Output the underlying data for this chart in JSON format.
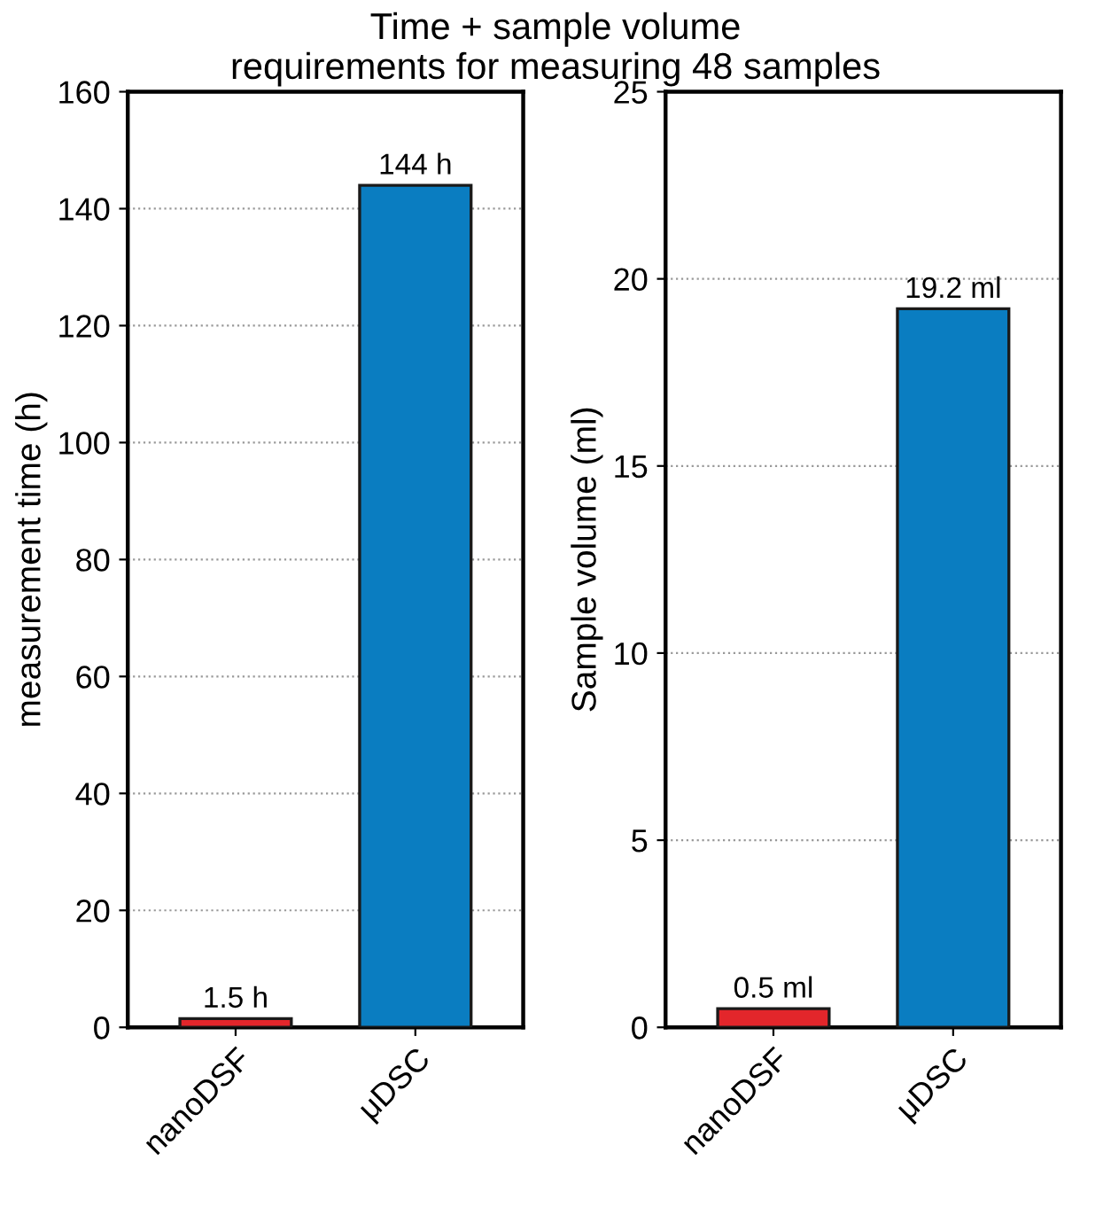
{
  "chart_data": [
    {
      "type": "bar",
      "title": "Time + sample volume\nrequirements for measuring 48 samples",
      "ylabel": "measurement time (h)",
      "categories": [
        "nanoDSF",
        "μDSC"
      ],
      "values": [
        1.5,
        144
      ],
      "colors": [
        "#e3262b",
        "#0a7dc1"
      ],
      "value_labels": [
        "1.5 h",
        "144 h"
      ],
      "ylim": [
        0,
        160
      ],
      "yticks": [
        0,
        20,
        40,
        60,
        80,
        100,
        120,
        140,
        160
      ],
      "grid": "y"
    },
    {
      "type": "bar",
      "ylabel": "Sample volume (ml)",
      "categories": [
        "nanoDSF",
        "μDSC"
      ],
      "values": [
        0.5,
        19.2
      ],
      "colors": [
        "#e3262b",
        "#0a7dc1"
      ],
      "value_labels": [
        "0.5 ml",
        "19.2 ml"
      ],
      "ylim": [
        0,
        25
      ],
      "yticks": [
        0,
        5,
        10,
        15,
        20,
        25
      ],
      "grid": "y"
    }
  ]
}
